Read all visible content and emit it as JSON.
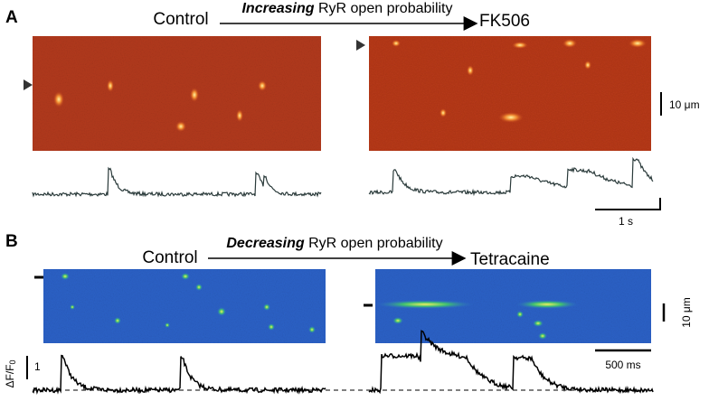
{
  "panels": [
    {
      "label": "A",
      "left_condition": "Control",
      "arrow_emphasis": "Increasing",
      "arrow_text": "RyR open probability",
      "right_condition": "FK506",
      "scale_space": "10 μm",
      "scale_time": "1 s"
    },
    {
      "label": "B",
      "left_condition": "Control",
      "arrow_emphasis": "Decreasing",
      "arrow_text": "RyR open probability",
      "right_condition": "Tetracaine",
      "scale_space": "10 μm",
      "scale_time": "500 ms",
      "y_axis_label": "ΔF/F",
      "y_axis_subscript": "0",
      "y_scale": "1"
    }
  ]
}
